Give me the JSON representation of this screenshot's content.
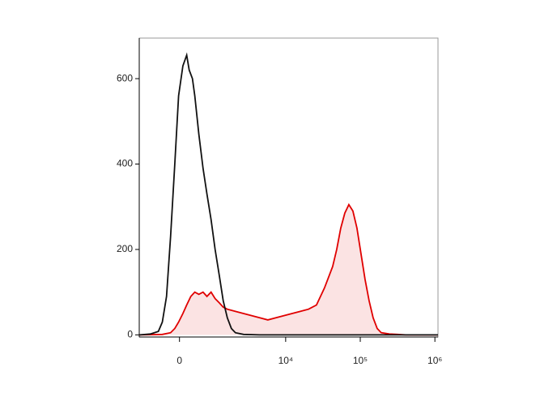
{
  "chart_data": {
    "type": "histogram-overlay",
    "xscale": "biex",
    "xlim": [
      -1200,
      1100000
    ],
    "xticks": [
      0,
      {
        "value": 10000,
        "label": "10⁴"
      },
      {
        "value": 100000,
        "label": "10⁵"
      },
      {
        "value": 1000000,
        "label": "10⁶"
      }
    ],
    "ylim": [
      -5,
      695
    ],
    "yticks": [
      0,
      200,
      400,
      600
    ],
    "series": [
      {
        "color": "#e00000",
        "fill": "#fbe3e3",
        "x": [
          -1180,
          -420,
          -210,
          -110,
          -20,
          80,
          170,
          270,
          370,
          480,
          600,
          720,
          860,
          1010,
          1180,
          1360,
          1570,
          2060,
          2680,
          3460,
          4470,
          5750,
          7400,
          9500,
          12200,
          15700,
          20200,
          25900,
          33200,
          42700,
          48400,
          54800,
          62100,
          70300,
          79700,
          90300,
          102300,
          116000,
          131400,
          148900,
          168700,
          191200,
          245600,
          315300,
          405000,
          1100000
        ],
        "values": [
          0,
          1,
          5,
          15,
          30,
          50,
          70,
          90,
          100,
          95,
          100,
          90,
          100,
          85,
          75,
          65,
          60,
          55,
          50,
          45,
          40,
          35,
          40,
          45,
          50,
          55,
          60,
          70,
          110,
          160,
          200,
          250,
          285,
          305,
          290,
          250,
          190,
          130,
          80,
          40,
          15,
          5,
          2,
          1,
          0,
          0
        ]
      },
      {
        "color": "#111111",
        "x": [
          -1180,
          -780,
          -530,
          -420,
          -310,
          -210,
          -110,
          -20,
          80,
          170,
          230,
          310,
          370,
          480,
          600,
          720,
          860,
          1010,
          1180,
          1360,
          1570,
          1800,
          2060,
          2680,
          4470,
          1100000
        ],
        "values": [
          0,
          2,
          8,
          30,
          90,
          230,
          400,
          560,
          630,
          655,
          620,
          600,
          560,
          470,
          390,
          330,
          270,
          200,
          140,
          80,
          40,
          15,
          5,
          1,
          0,
          0
        ]
      }
    ]
  }
}
